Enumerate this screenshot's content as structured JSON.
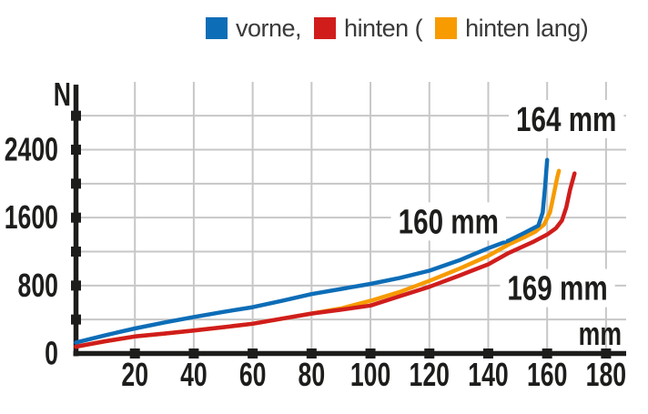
{
  "page": {
    "background": "#ffffff"
  },
  "legend": {
    "items": [
      {
        "label": "vorne,",
        "color": "#0d6db7"
      },
      {
        "label": "hinten (",
        "color": "#d01d1c"
      },
      {
        "label": "hinten lang)",
        "color": "#f79b00"
      }
    ]
  },
  "chart_data": {
    "type": "line",
    "title": "",
    "xlabel": "mm",
    "ylabel": "N",
    "xlim": [
      0,
      186
    ],
    "ylim": [
      0,
      3200
    ],
    "grid": true,
    "legend_position": "top",
    "x_ticks": [
      20,
      40,
      60,
      80,
      100,
      120,
      140,
      160,
      180
    ],
    "y_ticks": [
      400,
      800,
      1200,
      1600,
      2000,
      2400,
      2800
    ],
    "y_tick_labels": [
      {
        "value": 0,
        "label": "0"
      },
      {
        "value": 800,
        "label": "800"
      },
      {
        "value": 1600,
        "label": "1600"
      },
      {
        "value": 2400,
        "label": "2400"
      }
    ],
    "colors": {
      "grid": "#c7c7c7",
      "axis": "#1d1d1b",
      "text": "#1d1d1b"
    },
    "series": [
      {
        "name": "hinten lang",
        "color": "#f79b00",
        "points": [
          [
            0,
            80
          ],
          [
            10,
            145
          ],
          [
            20,
            200
          ],
          [
            30,
            235
          ],
          [
            40,
            270
          ],
          [
            50,
            310
          ],
          [
            60,
            350
          ],
          [
            70,
            410
          ],
          [
            80,
            470
          ],
          [
            90,
            530
          ],
          [
            100,
            620
          ],
          [
            110,
            725
          ],
          [
            120,
            855
          ],
          [
            130,
            995
          ],
          [
            140,
            1150
          ],
          [
            147,
            1285
          ],
          [
            152,
            1365
          ],
          [
            156,
            1435
          ],
          [
            159,
            1520
          ],
          [
            161,
            1665
          ],
          [
            162.3,
            1880
          ],
          [
            163.4,
            2070
          ],
          [
            164,
            2150
          ]
        ]
      },
      {
        "name": "hinten",
        "color": "#d01d1c",
        "points": [
          [
            0,
            80
          ],
          [
            10,
            145
          ],
          [
            20,
            200
          ],
          [
            30,
            235
          ],
          [
            40,
            270
          ],
          [
            50,
            310
          ],
          [
            60,
            350
          ],
          [
            70,
            410
          ],
          [
            80,
            470
          ],
          [
            90,
            515
          ],
          [
            100,
            565
          ],
          [
            110,
            675
          ],
          [
            120,
            785
          ],
          [
            130,
            915
          ],
          [
            140,
            1050
          ],
          [
            147,
            1185
          ],
          [
            155,
            1310
          ],
          [
            160,
            1400
          ],
          [
            163,
            1475
          ],
          [
            165,
            1565
          ],
          [
            166.5,
            1720
          ],
          [
            167.8,
            1930
          ],
          [
            169.3,
            2120
          ]
        ]
      },
      {
        "name": "vorne",
        "color": "#0d6db7",
        "points": [
          [
            0,
            130
          ],
          [
            10,
            215
          ],
          [
            20,
            295
          ],
          [
            30,
            365
          ],
          [
            40,
            430
          ],
          [
            50,
            490
          ],
          [
            60,
            545
          ],
          [
            70,
            620
          ],
          [
            80,
            700
          ],
          [
            90,
            760
          ],
          [
            100,
            820
          ],
          [
            110,
            890
          ],
          [
            120,
            975
          ],
          [
            130,
            1095
          ],
          [
            140,
            1240
          ],
          [
            147,
            1330
          ],
          [
            152,
            1415
          ],
          [
            157,
            1505
          ],
          [
            158.5,
            1660
          ],
          [
            159.3,
            1960
          ],
          [
            160,
            2280
          ]
        ]
      }
    ],
    "annotations": [
      {
        "label": "160 mm",
        "x_mm": 126.5,
        "y_n": 1555
      },
      {
        "label": "164 mm",
        "x_mm": 166.5,
        "y_n": 2760
      },
      {
        "label": "169 mm",
        "x_mm": 163.5,
        "y_n": 770
      }
    ]
  }
}
